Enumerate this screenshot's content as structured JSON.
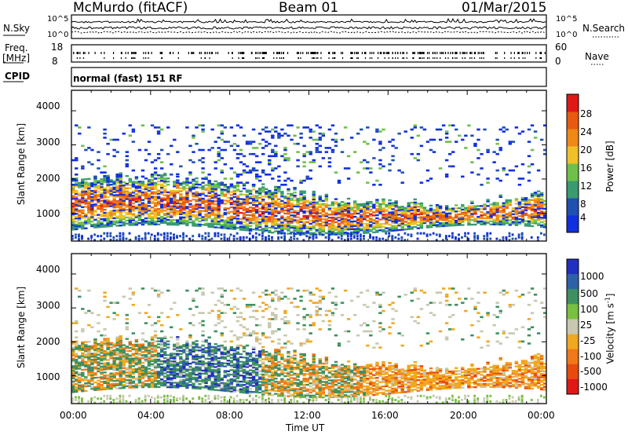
{
  "header": {
    "station": "McMurdo (fitACF)",
    "beam": "Beam 01",
    "date": "01/Mar/2015"
  },
  "top_panels": {
    "n_sky_label": "N.Sky",
    "n_search_label": "N.Search",
    "n_left_ticks": [
      "10^5",
      "10^0"
    ],
    "n_right_ticks": [
      "10^5",
      "10^0"
    ],
    "freq_label": "Freq.",
    "freq_unit": "[MHz]",
    "freq_ticks": [
      "18",
      "8"
    ],
    "nave_label": "Nave",
    "nave_ticks": [
      "60",
      "0"
    ],
    "cpid_label": "CPID",
    "cpid_value": "normal (fast) 151 RF"
  },
  "colors": {
    "power": [
      "#1030e0",
      "#2050b0",
      "#3a9a72",
      "#6fc04a",
      "#f0c028",
      "#f08818",
      "#e85a10",
      "#e01818"
    ],
    "velocity": [
      "#2030c0",
      "#2e62a8",
      "#3e9060",
      "#78c040",
      "#c8c8b0",
      "#f0a820",
      "#f07818",
      "#e84a10",
      "#e01818"
    ]
  },
  "chart_data": [
    {
      "type": "heatmap",
      "title": "",
      "ylabel": "Slant Range [km]",
      "xlabel": "",
      "x_ticks": [
        "00:00",
        "04:00",
        "08:00",
        "12:00",
        "16:00",
        "20:00",
        "00:00"
      ],
      "y_ticks": [
        1000,
        2000,
        3000,
        4000
      ],
      "ylim": [
        180,
        4600
      ],
      "colorbar": {
        "label": "Power [dB]",
        "ticks": [
          4,
          8,
          12,
          16,
          20,
          24,
          28
        ]
      }
    },
    {
      "type": "heatmap",
      "title": "",
      "ylabel": "Slant Range [km]",
      "xlabel": "Time UT",
      "x_ticks": [
        "00:00",
        "04:00",
        "08:00",
        "12:00",
        "16:00",
        "20:00",
        "00:00"
      ],
      "y_ticks": [
        1000,
        2000,
        3000,
        4000
      ],
      "ylim": [
        180,
        4600
      ],
      "colorbar": {
        "label": "Velocity [m s",
        "label_sup": "-1",
        "label_end": "]",
        "ticks": [
          1000,
          500,
          100,
          25,
          -25,
          -100,
          -500,
          -1000
        ]
      }
    }
  ]
}
